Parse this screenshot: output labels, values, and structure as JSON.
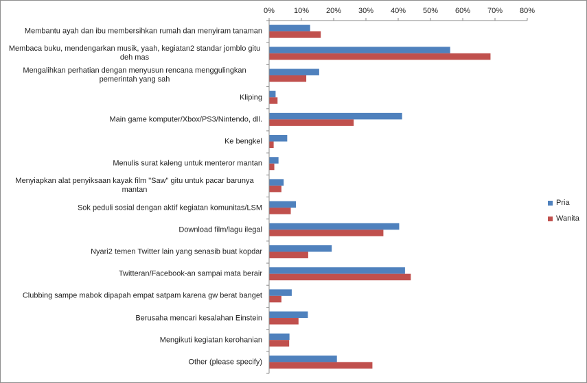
{
  "chart_data": {
    "type": "bar",
    "orientation": "horizontal",
    "title": "",
    "xlabel": "",
    "ylabel": "",
    "xlim": [
      0,
      80
    ],
    "x_ticks": [
      "0%",
      "10%",
      "20%",
      "30%",
      "40%",
      "50%",
      "60%",
      "70%",
      "80%"
    ],
    "grid": false,
    "legend_position": "right",
    "categories": [
      "Membantu ayah dan ibu membersihkan rumah dan menyiram tanaman",
      "Membaca buku, mendengarkan musik, yaah, kegiatan2 standar jomblo gitu deh mas",
      "Mengalihkan perhatian dengan menyusun rencana menggulingkan pemerintah yang sah",
      "Kliping",
      "Main game komputer/Xbox/PS3/Nintendo, dll.",
      "Ke bengkel",
      "Menulis surat kaleng untuk menteror mantan",
      "Menyiapkan alat penyiksaan kayak film \"Saw\" gitu untuk pacar barunya mantan",
      "Sok peduli sosial dengan aktif kegiatan komunitas/LSM",
      "Download film/lagu ilegal",
      "Nyari2 temen Twitter lain yang senasib buat kopdar",
      "Twitteran/Facebook-an sampai mata berair",
      "Clubbing sampe mabok dipapah empat satpam karena gw berat banget",
      "Berusaha mencari kesalahan Einstein",
      "Mengikuti kegiatan kerohanian",
      "Other (please specify)"
    ],
    "series": [
      {
        "name": "Pria",
        "color": "#4f81bd",
        "values": [
          12.6,
          56.0,
          15.4,
          1.9,
          41.1,
          5.5,
          2.8,
          4.4,
          8.2,
          40.2,
          19.3,
          42.0,
          6.9,
          11.9,
          6.2,
          20.9
        ]
      },
      {
        "name": "Wanita",
        "color": "#c0504d",
        "values": [
          15.9,
          68.5,
          11.4,
          2.5,
          26.1,
          1.3,
          1.5,
          3.7,
          6.6,
          35.3,
          12.0,
          43.8,
          3.7,
          9.0,
          6.1,
          31.9
        ]
      }
    ]
  }
}
